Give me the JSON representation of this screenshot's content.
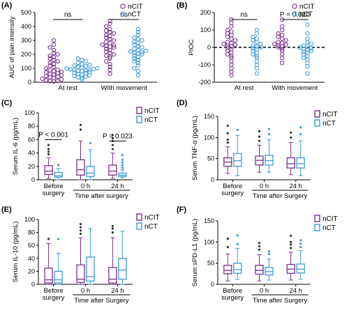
{
  "colors": {
    "purple": "#7B2D8E",
    "blue": "#3A9AD9",
    "black": "#000000"
  },
  "chart_data": [
    {
      "panel": "(A)",
      "type": "scatter",
      "ylabel": "AUC of pain intensity",
      "ylim": [
        0,
        500
      ],
      "yticks": [
        "0",
        "100",
        "200",
        "300",
        "400",
        "500"
      ],
      "groups": [
        "At rest",
        "With movement"
      ],
      "legend": [
        "nCIT",
        "nCT"
      ],
      "annotations": [
        "ns",
        "ns"
      ],
      "series": [
        {
          "group": "At rest",
          "legend": "nCIT",
          "values": [
            5,
            8,
            10,
            15,
            20,
            25,
            30,
            35,
            40,
            45,
            50,
            55,
            60,
            65,
            70,
            75,
            80,
            85,
            90,
            100,
            110,
            120,
            130,
            140,
            150,
            160,
            170,
            180,
            190,
            200,
            210,
            230,
            250,
            270,
            300
          ]
        },
        {
          "group": "At rest",
          "legend": "nCT",
          "values": [
            20,
            30,
            35,
            40,
            45,
            50,
            55,
            60,
            65,
            70,
            75,
            80,
            82,
            85,
            88,
            90,
            92,
            95,
            98,
            100,
            105,
            110,
            115,
            120,
            125,
            130,
            140,
            150,
            160,
            170
          ]
        },
        {
          "group": "With movement",
          "legend": "nCIT",
          "values": [
            60,
            90,
            110,
            130,
            150,
            170,
            180,
            190,
            200,
            210,
            220,
            230,
            240,
            250,
            255,
            260,
            265,
            270,
            280,
            290,
            300,
            310,
            320,
            330,
            340,
            350,
            360,
            370,
            380,
            400,
            420,
            440
          ]
        },
        {
          "group": "With movement",
          "legend": "nCT",
          "values": [
            50,
            80,
            100,
            120,
            140,
            150,
            160,
            170,
            180,
            190,
            200,
            205,
            210,
            215,
            220,
            225,
            230,
            240,
            250,
            260,
            270,
            280,
            290,
            300,
            310,
            320,
            340,
            360,
            380
          ]
        }
      ]
    },
    {
      "panel": "(B)",
      "type": "scatter",
      "ylabel": "PIOC",
      "ylim": [
        -200,
        200
      ],
      "yticks": [
        "-200",
        "-100",
        "0",
        "100",
        "200"
      ],
      "groups": [
        "At rest",
        "With movement"
      ],
      "legend": [
        "nCIT",
        "nCT"
      ],
      "annotations": [
        "ns",
        "P = 0.020"
      ],
      "series": [
        {
          "group": "At rest",
          "legend": "nCIT",
          "values": [
            -160,
            -140,
            -120,
            -100,
            -80,
            -60,
            -50,
            -40,
            -30,
            -20,
            -10,
            0,
            5,
            10,
            15,
            20,
            25,
            30,
            40,
            50,
            60,
            70,
            80,
            90,
            100,
            120,
            140,
            160
          ]
        },
        {
          "group": "At rest",
          "legend": "nCT",
          "values": [
            -150,
            -120,
            -100,
            -80,
            -60,
            -50,
            -40,
            -30,
            -20,
            -10,
            -5,
            0,
            5,
            10,
            20,
            30,
            40,
            50,
            60,
            80,
            100
          ]
        },
        {
          "group": "With movement",
          "legend": "nCIT",
          "values": [
            -90,
            -60,
            -40,
            -20,
            -10,
            0,
            5,
            10,
            15,
            20,
            25,
            30,
            40,
            50,
            60,
            70,
            80,
            100,
            120,
            160
          ]
        },
        {
          "group": "With movement",
          "legend": "nCT",
          "values": [
            -150,
            -110,
            -90,
            -70,
            -60,
            -50,
            -40,
            -30,
            -25,
            -20,
            -15,
            -10,
            -5,
            0,
            5,
            10,
            20,
            30,
            50,
            80,
            130
          ]
        }
      ]
    },
    {
      "panel": "(C)",
      "type": "box",
      "ylabel": "Serum IL-6 (pg/mL)",
      "ylim": [
        0,
        100
      ],
      "yticks": [
        "0",
        "20",
        "40",
        "60",
        "80",
        "100"
      ],
      "groups": [
        "Before surgery",
        "0 h",
        "24 h"
      ],
      "group_title": "Time after surgery",
      "legend": [
        "nCIT",
        "nCT"
      ],
      "annotations": [
        "P < 0.001",
        "P = 0.023"
      ],
      "boxes": [
        {
          "group": "Before surgery",
          "legend": "nCIT",
          "min": 2,
          "q1": 8,
          "median": 13,
          "q3": 21,
          "max": 33,
          "outliers": [
            38,
            42,
            46,
            52
          ]
        },
        {
          "group": "Before surgery",
          "legend": "nCT",
          "min": 0,
          "q1": 4,
          "median": 6,
          "q3": 11,
          "max": 17,
          "outliers": [
            22
          ]
        },
        {
          "group": "0 h",
          "legend": "nCIT",
          "min": 0,
          "q1": 7,
          "median": 15,
          "q3": 30,
          "max": 58,
          "outliers": [
            75,
            82
          ]
        },
        {
          "group": "0 h",
          "legend": "nCT",
          "min": 0,
          "q1": 5,
          "median": 10,
          "q3": 20,
          "max": 45,
          "outliers": [
            55
          ]
        },
        {
          "group": "24 h",
          "legend": "nCIT",
          "min": 2,
          "q1": 7,
          "median": 13,
          "q3": 22,
          "max": 40,
          "outliers": [
            46,
            52,
            58,
            62,
            67
          ]
        },
        {
          "group": "24 h",
          "legend": "nCT",
          "min": 3,
          "q1": 5,
          "median": 7,
          "q3": 10,
          "max": 15,
          "outliers": [
            18,
            22,
            26,
            30,
            37
          ]
        }
      ]
    },
    {
      "panel": "(D)",
      "type": "box",
      "ylabel": "Serum TNF-α (pg/mL)",
      "ylim": [
        0,
        150
      ],
      "yticks": [
        "0",
        "50",
        "100",
        "150"
      ],
      "groups": [
        "Before surgery",
        "0 h",
        "24 h"
      ],
      "group_title": "Time after Surgery",
      "legend": [
        "nCIT",
        "nCT"
      ],
      "boxes": [
        {
          "group": "Before surgery",
          "legend": "nCIT",
          "min": 15,
          "q1": 32,
          "median": 42,
          "q3": 52,
          "max": 78,
          "outliers": [
            88,
            95,
            110,
            128
          ]
        },
        {
          "group": "Before surgery",
          "legend": "nCT",
          "min": 10,
          "q1": 32,
          "median": 45,
          "q3": 62,
          "max": 105,
          "outliers": [
            118
          ]
        },
        {
          "group": "0 h",
          "legend": "nCIT",
          "min": 18,
          "q1": 35,
          "median": 46,
          "q3": 56,
          "max": 82,
          "outliers": [
            92,
            102,
            115
          ]
        },
        {
          "group": "0 h",
          "legend": "nCT",
          "min": 18,
          "q1": 35,
          "median": 45,
          "q3": 58,
          "max": 95,
          "outliers": [
            108,
            120
          ]
        },
        {
          "group": "24 h",
          "legend": "nCIT",
          "min": 12,
          "q1": 28,
          "median": 38,
          "q3": 52,
          "max": 88,
          "outliers": [
            100,
            112
          ]
        },
        {
          "group": "24 h",
          "legend": "nCT",
          "min": 10,
          "q1": 28,
          "median": 38,
          "q3": 52,
          "max": 92,
          "outliers": [
            108,
            124
          ]
        }
      ]
    },
    {
      "panel": "(E)",
      "type": "box",
      "ylabel": "Serum IL-10 (pg/mL)",
      "ylim": [
        0,
        100
      ],
      "yticks": [
        "0",
        "20",
        "40",
        "60",
        "80",
        "100"
      ],
      "groups": [
        "Before surgery",
        "0 h",
        "24 h"
      ],
      "group_title": "Time after Surgery",
      "legend": [
        "nCIT",
        "nCT"
      ],
      "boxes": [
        {
          "group": "Before surgery",
          "legend": "nCIT",
          "min": 0,
          "q1": 2,
          "median": 7,
          "q3": 25,
          "max": 63,
          "outliers": [
            70
          ]
        },
        {
          "group": "Before surgery",
          "legend": "nCT",
          "min": 0,
          "q1": 2,
          "median": 7,
          "q3": 20,
          "max": 48,
          "outliers": [
            70
          ]
        },
        {
          "group": "0 h",
          "legend": "nCIT",
          "min": 0,
          "q1": 3,
          "median": 8,
          "q3": 30,
          "max": 72,
          "outliers": [
            78,
            83,
            88,
            93
          ]
        },
        {
          "group": "0 h",
          "legend": "nCT",
          "min": 0,
          "q1": 5,
          "median": 12,
          "q3": 42,
          "max": 86,
          "outliers": []
        },
        {
          "group": "24 h",
          "legend": "nCIT",
          "min": 0,
          "q1": 2,
          "median": 8,
          "q3": 26,
          "max": 72,
          "outliers": [
            80,
            86,
            90
          ]
        },
        {
          "group": "24 h",
          "legend": "nCT",
          "min": 0,
          "q1": 8,
          "median": 22,
          "q3": 40,
          "max": 82,
          "outliers": []
        }
      ]
    },
    {
      "panel": "(F)",
      "type": "box",
      "ylabel": "Serum sPD-L1 (pg/mL)",
      "ylim": [
        0,
        150
      ],
      "yticks": [
        "0",
        "50",
        "100",
        "150"
      ],
      "groups": [
        "Before surgery",
        "0 h",
        "24 h"
      ],
      "group_title": "Time after Surgery",
      "legend": [
        "nCIT",
        "nCT"
      ],
      "boxes": [
        {
          "group": "Before surgery",
          "legend": "nCIT",
          "min": 8,
          "q1": 25,
          "median": 33,
          "q3": 45,
          "max": 72,
          "outliers": [
            88,
            108
          ]
        },
        {
          "group": "Before surgery",
          "legend": "nCT",
          "min": 12,
          "q1": 26,
          "median": 35,
          "q3": 50,
          "max": 85,
          "outliers": [
            95,
            116
          ]
        },
        {
          "group": "0 h",
          "legend": "nCIT",
          "min": 8,
          "q1": 24,
          "median": 33,
          "q3": 45,
          "max": 70,
          "outliers": [
            82,
            90,
            98
          ]
        },
        {
          "group": "0 h",
          "legend": "nCT",
          "min": 10,
          "q1": 22,
          "median": 30,
          "q3": 40,
          "max": 60,
          "outliers": [
            72,
            78
          ]
        },
        {
          "group": "24 h",
          "legend": "nCIT",
          "min": 10,
          "q1": 26,
          "median": 36,
          "q3": 47,
          "max": 76,
          "outliers": [
            86,
            94,
            100,
            115
          ]
        },
        {
          "group": "24 h",
          "legend": "nCT",
          "min": 12,
          "q1": 27,
          "median": 36,
          "q3": 48,
          "max": 80,
          "outliers": [
            88,
            96,
            104
          ]
        }
      ]
    }
  ]
}
